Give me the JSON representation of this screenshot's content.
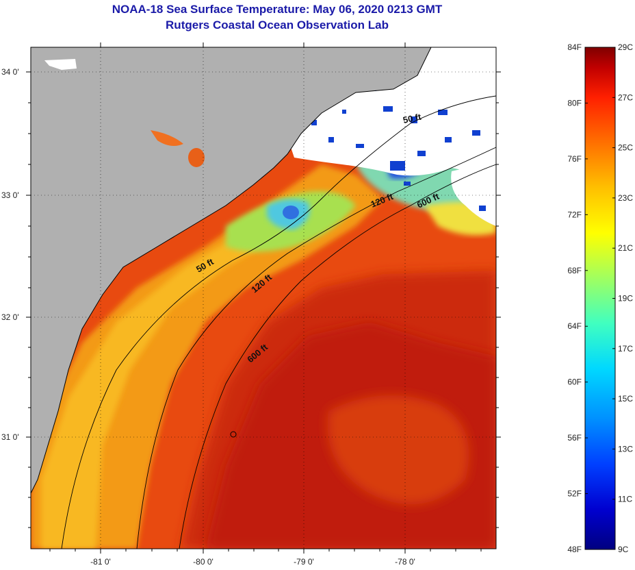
{
  "title": "NOAA-18 Sea Surface Temperature:  May 06, 2020 0213 GMT",
  "subtitle": "Rutgers Coastal Ocean Observation Lab",
  "lat_labels": [
    "34 0'",
    "33 0'",
    "32 0'",
    "31 0'"
  ],
  "lon_labels": [
    "-81 0'",
    "-80 0'",
    "-79 0'",
    "-78 0'"
  ],
  "contours": [
    "50 ft",
    "50 ft",
    "120 ft",
    "120 ft",
    "600 ft",
    "600 ft"
  ],
  "colorbar": {
    "fahrenheit": [
      "84F",
      "80F",
      "76F",
      "72F",
      "68F",
      "64F",
      "60F",
      "56F",
      "52F",
      "48F"
    ],
    "celsius": [
      "29C",
      "27C",
      "25C",
      "23C",
      "21C",
      "19C",
      "17C",
      "15C",
      "13C",
      "11C",
      "9C"
    ],
    "colors": [
      "#000080",
      "#0000d0",
      "#0040ff",
      "#0090ff",
      "#00d8ff",
      "#40ffc0",
      "#a0ff60",
      "#ffff00",
      "#ffc000",
      "#ff7000",
      "#ff2000",
      "#c00000",
      "#800000"
    ]
  },
  "colors": {
    "land": "#b0b0b0",
    "title": "#1a1aa8",
    "warm_water": "#e84a10",
    "offshore": "#c81e0a",
    "coastal": "#f8a820",
    "cloud": "#ffffff"
  }
}
